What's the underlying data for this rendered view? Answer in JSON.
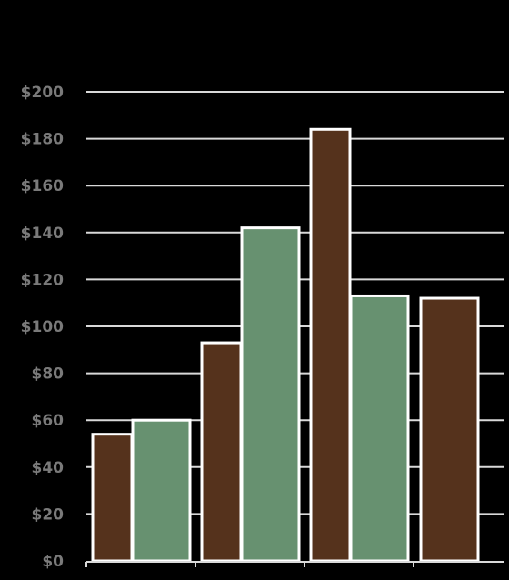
{
  "chart_data": {
    "type": "bar",
    "title": "",
    "xlabel": "",
    "ylabel": "",
    "ylim": [
      0,
      200
    ],
    "ytick_step": 20,
    "ytick_prefix": "$",
    "grid": true,
    "legend": "none",
    "colors": {
      "background": "#000000",
      "series_1": "#55321c",
      "series_2": "#679170",
      "grid": "#d9d9d9",
      "tick_label": "#7a7a7a",
      "bar_outline": "#ffffff"
    },
    "groups": [
      {
        "bars": [
          {
            "series": 1,
            "value": 54
          },
          {
            "series": 2,
            "value": 60
          }
        ]
      },
      {
        "bars": [
          {
            "series": 1,
            "value": 93
          },
          {
            "series": 2,
            "value": 142
          }
        ]
      },
      {
        "bars": [
          {
            "series": 1,
            "value": 184
          },
          {
            "series": 2,
            "value": 113
          }
        ]
      },
      {
        "bars": [
          {
            "series": 1,
            "value": 112
          }
        ]
      }
    ]
  }
}
